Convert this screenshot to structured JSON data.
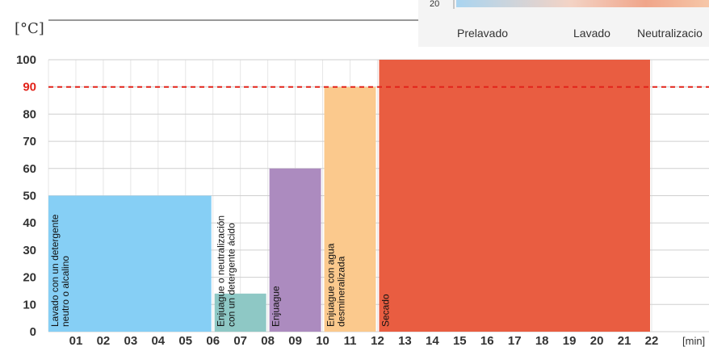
{
  "chart_data": {
    "type": "bar",
    "ylabel": "[°C]",
    "xlabel": "[min]",
    "ylim": [
      0,
      100
    ],
    "xlim": [
      0,
      22
    ],
    "yticks": [
      "0",
      "10",
      "20",
      "30",
      "40",
      "50",
      "60",
      "70",
      "80",
      "90",
      "100"
    ],
    "xticks": [
      "01",
      "02",
      "03",
      "04",
      "05",
      "06",
      "07",
      "08",
      "09",
      "10",
      "11",
      "12",
      "13",
      "14",
      "15",
      "16",
      "17",
      "18",
      "19",
      "20",
      "21",
      "22"
    ],
    "reference_line": {
      "value": 90,
      "label": "90",
      "color": "#e2231a"
    },
    "bars": [
      {
        "label": "Lavado con un detergente neutro o alcalino",
        "label_lines": [
          "Lavado con un detergente",
          "neutro o alcalino"
        ],
        "x_start": 0,
        "x_end": 6,
        "value": 50,
        "color": "#86cff5"
      },
      {
        "label": "Enjuague o neutralización con un detergente ácido",
        "label_lines": [
          "Enjuague o neutralización",
          "con un detergente ácido"
        ],
        "x_start": 6,
        "x_end": 8,
        "value": 14,
        "color": "#8ec8c5"
      },
      {
        "label": "Enjuague",
        "label_lines": [
          "Enjuague"
        ],
        "x_start": 8,
        "x_end": 10,
        "value": 60,
        "color": "#ac8bbf"
      },
      {
        "label": "Enjuague con agua desmineralizada",
        "label_lines": [
          "Enjuague con agua",
          "desmineralizada"
        ],
        "x_start": 10,
        "x_end": 12,
        "value": 90,
        "color": "#fbc98d"
      },
      {
        "label": "Secado",
        "label_lines": [
          "Secado"
        ],
        "x_start": 12,
        "x_end": 22,
        "value": 100,
        "color": "#e95d41"
      }
    ],
    "grid": true
  },
  "inset": {
    "partial_tick": "20",
    "labels": [
      "Prelavado",
      "Lavado",
      "Neutralizacio"
    ]
  }
}
